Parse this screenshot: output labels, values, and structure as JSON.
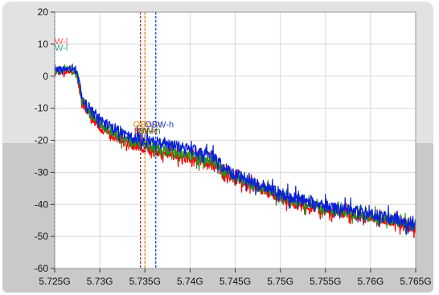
{
  "chart_data": {
    "type": "line",
    "title": "",
    "xlabel": "",
    "ylabel": "",
    "xlim": [
      5.725,
      5.765
    ],
    "ylim": [
      -60,
      20
    ],
    "x_ticks": [
      5.725,
      5.73,
      5.735,
      5.74,
      5.745,
      5.75,
      5.755,
      5.76,
      5.765
    ],
    "x_tick_labels": [
      "5.725G",
      "5.73G",
      "5.735G",
      "5.74G",
      "5.745G",
      "5.75G",
      "5.755G",
      "5.76G",
      "5.765G"
    ],
    "y_ticks": [
      20,
      10,
      0,
      -10,
      -20,
      -30,
      -40,
      -50,
      -60
    ],
    "y_tick_labels": [
      "20",
      "10",
      "0",
      "-10",
      "-20",
      "-30",
      "-40",
      "-50",
      "-60"
    ],
    "grid": true,
    "series": [
      {
        "color": "#ff0000",
        "noise": 1.6,
        "x": [
          5.725,
          5.7265,
          5.7275,
          5.728,
          5.729,
          5.7305,
          5.733,
          5.736,
          5.7395,
          5.742,
          5.7445,
          5.7475,
          5.751,
          5.755,
          5.759,
          5.7625,
          5.765
        ],
        "values": [
          1,
          1.5,
          0.5,
          -8,
          -13,
          -17,
          -21,
          -23.5,
          -25.5,
          -27,
          -31.5,
          -35,
          -39,
          -42,
          -44,
          -45.5,
          -47.5
        ]
      },
      {
        "color": "#2e8b1e",
        "noise": 1.6,
        "x": [
          5.725,
          5.7265,
          5.7275,
          5.728,
          5.729,
          5.7305,
          5.733,
          5.736,
          5.7395,
          5.742,
          5.7445,
          5.7475,
          5.751,
          5.755,
          5.759,
          5.7625,
          5.765
        ],
        "values": [
          1.5,
          2,
          1,
          -7,
          -12,
          -16,
          -20,
          -22.5,
          -24.5,
          -26,
          -31,
          -34.5,
          -38.5,
          -41.5,
          -43.5,
          -45,
          -47
        ]
      },
      {
        "color": "#0a1fd8",
        "noise": 1.8,
        "x": [
          5.725,
          5.7265,
          5.7275,
          5.728,
          5.729,
          5.7305,
          5.733,
          5.736,
          5.7395,
          5.742,
          5.7445,
          5.7475,
          5.751,
          5.755,
          5.759,
          5.7625,
          5.765
        ],
        "values": [
          2,
          2.5,
          1.5,
          -6,
          -11,
          -14.5,
          -18.5,
          -20.5,
          -22.5,
          -24,
          -30,
          -33.5,
          -37.5,
          -40.5,
          -42.5,
          -44.5,
          -46.5
        ]
      }
    ],
    "cursors": [
      {
        "x": 5.725,
        "color": "#2e7d6e",
        "style": "dashed"
      },
      {
        "x": 5.7345,
        "color": "#d02020",
        "style": "dashed"
      },
      {
        "x": 5.735,
        "color": "#e08a00",
        "style": "dashed"
      },
      {
        "x": 5.7362,
        "color": "#2040e0",
        "style": "dashed"
      }
    ],
    "cursor_labels": [
      {
        "text": "W-l",
        "x": 5.725,
        "y": 10,
        "color": "#ff5a5a"
      },
      {
        "text": "W-l",
        "x": 5.725,
        "y": 8,
        "color": "#3a9a8a"
      },
      {
        "text": "OBW-h",
        "x": 5.7337,
        "y": -16,
        "color": "#e08a00"
      },
      {
        "text": "OBW-h",
        "x": 5.735,
        "y": -16,
        "color": "#2040e0"
      },
      {
        "text": "BW-h",
        "x": 5.7338,
        "y": -18,
        "color": "#d02020"
      },
      {
        "text": "BW-h",
        "x": 5.7343,
        "y": -18,
        "color": "#2e8b1e"
      }
    ],
    "colors": {
      "plot_background": "#ffffff",
      "grid": "#d8d8d8",
      "frame_top": "#e2e2e2",
      "frame_bottom": "#c9c9c9"
    }
  }
}
